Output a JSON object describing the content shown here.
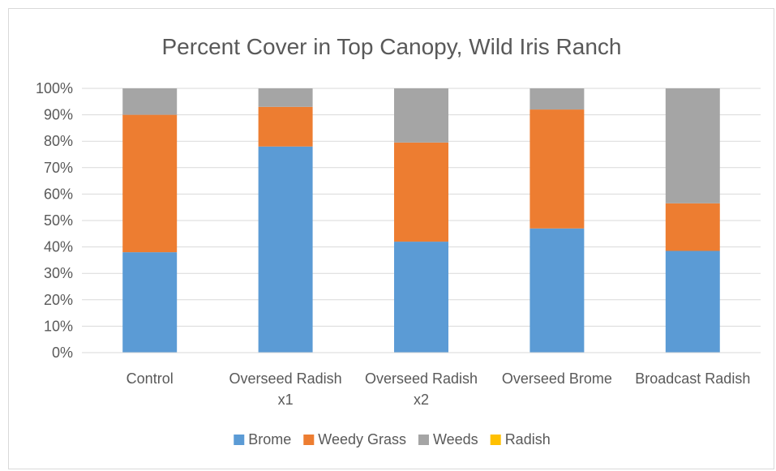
{
  "chart_data": {
    "type": "bar",
    "stacked": true,
    "title": "Percent Cover in Top Canopy, Wild Iris Ranch",
    "xlabel": "",
    "ylabel": "",
    "ylim": [
      0,
      1
    ],
    "y_tick_labels": [
      "0%",
      "10%",
      "20%",
      "30%",
      "40%",
      "50%",
      "60%",
      "70%",
      "80%",
      "90%",
      "100%"
    ],
    "grid": true,
    "legend_position": "bottom",
    "categories": [
      [
        "Control"
      ],
      [
        "Overseed Radish",
        "x1"
      ],
      [
        "Overseed Radish",
        "x2"
      ],
      [
        "Overseed Brome"
      ],
      [
        "Broadcast Radish"
      ]
    ],
    "series": [
      {
        "name": "Brome",
        "color": "#5B9BD5",
        "values": [
          0.38,
          0.78,
          0.42,
          0.47,
          0.385
        ]
      },
      {
        "name": "Weedy Grass",
        "color": "#ED7D31",
        "values": [
          0.52,
          0.15,
          0.375,
          0.45,
          0.18
        ]
      },
      {
        "name": "Weeds",
        "color": "#A5A5A5",
        "values": [
          0.1,
          0.07,
          0.205,
          0.08,
          0.435
        ]
      },
      {
        "name": "Radish",
        "color": "#FFC000",
        "values": [
          0,
          0,
          0,
          0,
          0
        ]
      }
    ]
  }
}
